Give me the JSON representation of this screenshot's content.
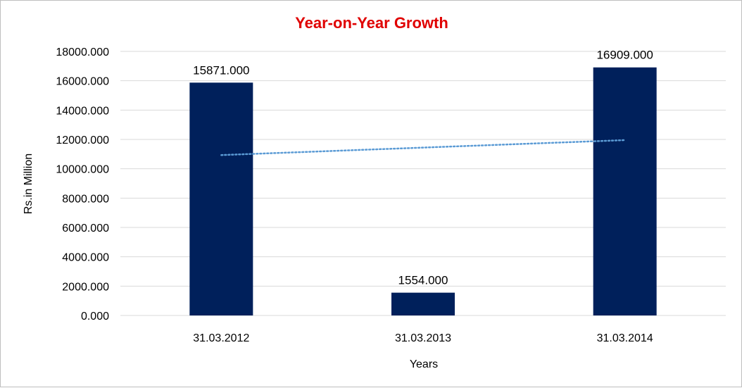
{
  "chart_data": {
    "type": "bar",
    "title": "Year-on-Year Growth",
    "xlabel": "Years",
    "ylabel": "Rs.in Million",
    "categories": [
      "31.03.2012",
      "31.03.2013",
      "31.03.2014"
    ],
    "values": [
      15871.0,
      1554.0,
      16909.0
    ],
    "value_labels": [
      "15871.000",
      "1554.000",
      "16909.000"
    ],
    "ylim": [
      0,
      18000
    ],
    "yticks": [
      "0.000",
      "2000.000",
      "4000.000",
      "6000.000",
      "8000.000",
      "10000.000",
      "12000.000",
      "14000.000",
      "16000.000",
      "18000.000"
    ],
    "ytick_values": [
      0,
      2000,
      4000,
      6000,
      8000,
      10000,
      12000,
      14000,
      16000,
      18000
    ],
    "grid": true,
    "trendline": {
      "type": "linear",
      "style": "dotted",
      "start": 10934,
      "end": 11953
    },
    "colors": {
      "bar": "#00205B",
      "title": "#E00000",
      "trendline": "#5B9BD5",
      "grid": "#D9D9D9"
    }
  }
}
